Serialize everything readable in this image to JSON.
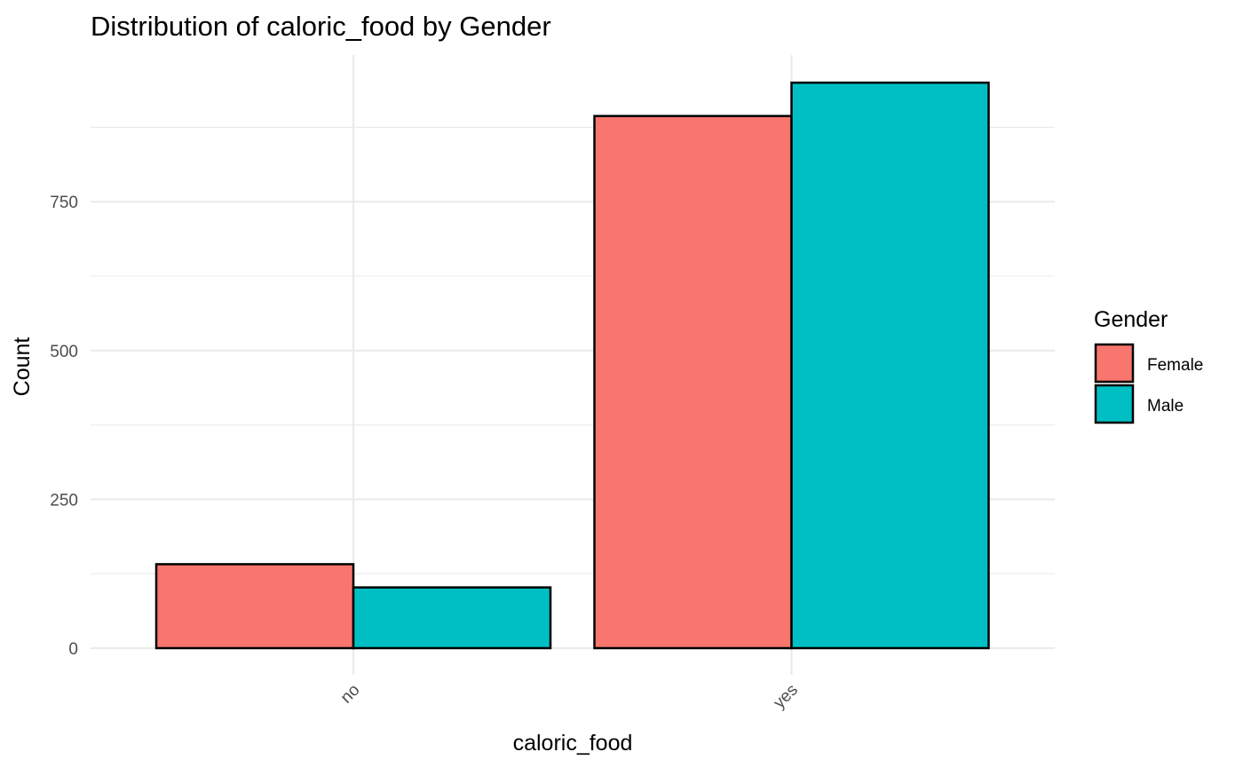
{
  "chart_data": {
    "type": "bar",
    "title": "Distribution of caloric_food by Gender",
    "xlabel": "caloric_food",
    "ylabel": "Count",
    "categories": [
      "no",
      "yes"
    ],
    "series": [
      {
        "name": "Female",
        "values": [
          141,
          894
        ],
        "color": "#F8766D"
      },
      {
        "name": "Male",
        "values": [
          102,
          950
        ],
        "color": "#00BFC4"
      }
    ],
    "yticks": [
      0,
      250,
      500,
      750
    ],
    "ylim": [
      0,
      950
    ],
    "grid": true,
    "legend": {
      "title": "Gender",
      "position": "right"
    }
  }
}
